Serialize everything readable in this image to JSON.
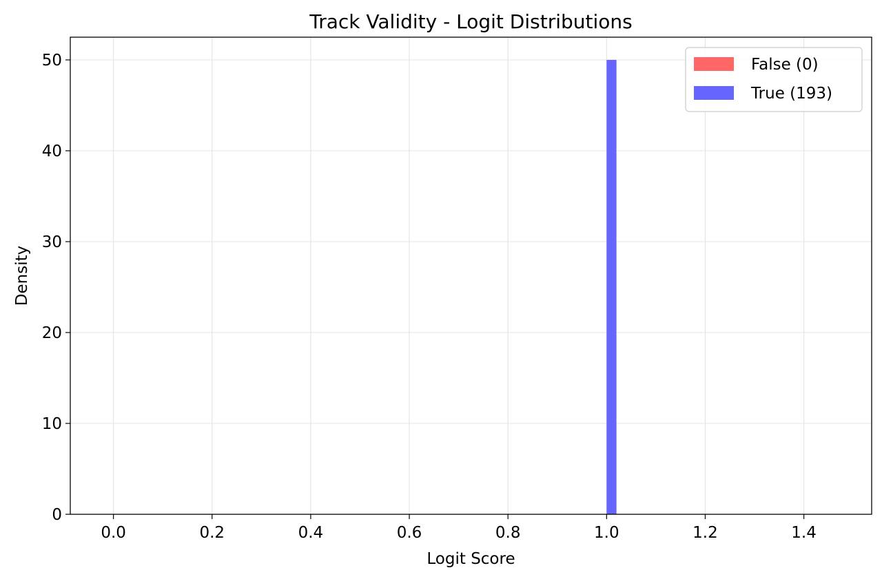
{
  "chart_data": {
    "type": "bar",
    "title": "Track Validity - Logit Distributions",
    "xlabel": "Logit Score",
    "ylabel": "Density",
    "xlim": [
      -0.0875,
      1.5375
    ],
    "ylim": [
      0,
      52.5
    ],
    "xticks": [
      0.0,
      0.2,
      0.4,
      0.6,
      0.8,
      1.0,
      1.2,
      1.4
    ],
    "xtick_labels": [
      "0.0",
      "0.2",
      "0.4",
      "0.6",
      "0.8",
      "1.0",
      "1.2",
      "1.4"
    ],
    "yticks": [
      0,
      10,
      20,
      30,
      40,
      50
    ],
    "ytick_labels": [
      "0",
      "10",
      "20",
      "30",
      "40",
      "50"
    ],
    "grid": true,
    "legend_position": "top-right",
    "series": [
      {
        "name": "False (0)",
        "color": "#ff6666",
        "bins": []
      },
      {
        "name": "True (193)",
        "color": "#6666ff",
        "bins": [
          {
            "x0": 1.0,
            "x1": 1.02,
            "value": 50
          }
        ]
      }
    ]
  }
}
